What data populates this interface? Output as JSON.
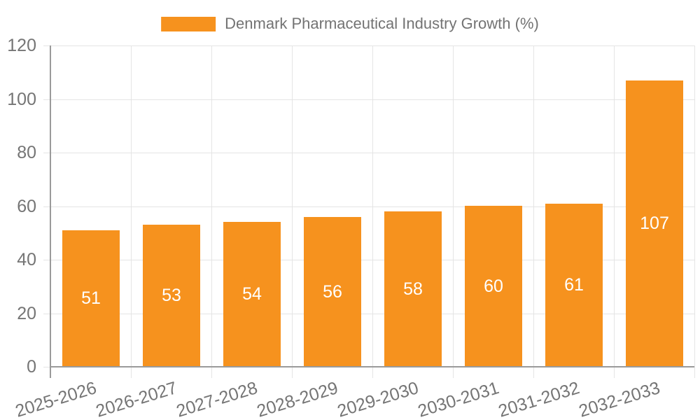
{
  "chart_data": {
    "type": "bar",
    "title": "Denmark Pharmaceutical Industry Growth (%)",
    "legend": [
      "Denmark Pharmaceutical Industry Growth (%)"
    ],
    "legend_position": "top-center",
    "categories": [
      "2025-2026",
      "2026-2027",
      "2027-2028",
      "2028-2029",
      "2029-2030",
      "2030-2031",
      "2031-2032",
      "2032-2033"
    ],
    "values": [
      51,
      53,
      54,
      56,
      58,
      60,
      61,
      107
    ],
    "bar_labels": [
      "51",
      "53",
      "54",
      "56",
      "58",
      "60",
      "61",
      "107"
    ],
    "xlabel": "",
    "ylabel": "",
    "ylim": [
      0,
      120
    ],
    "yticks": [
      0,
      20,
      40,
      60,
      80,
      100,
      120
    ],
    "grid": true,
    "x_tick_label_rotation_deg": -17,
    "colors": {
      "bar": "#F6921E",
      "bar_label": "#FFFFFF",
      "axis": "#9A9A9A",
      "gridline": "#E4E4E4",
      "tick_label": "#757575",
      "legend_text": "#737373",
      "background": "#FFFFFF"
    }
  }
}
